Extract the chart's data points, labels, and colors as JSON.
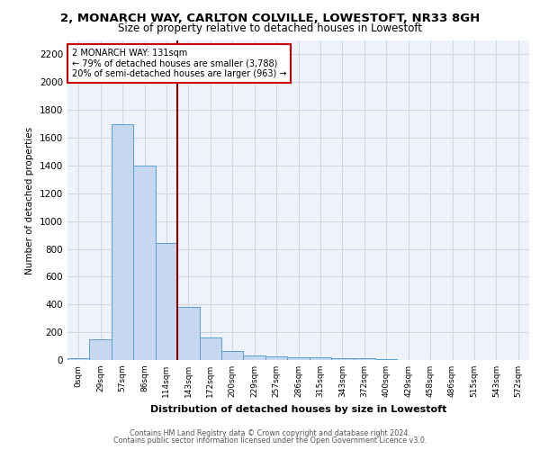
{
  "title1": "2, MONARCH WAY, CARLTON COLVILLE, LOWESTOFT, NR33 8GH",
  "title2": "Size of property relative to detached houses in Lowestoft",
  "xlabel": "Distribution of detached houses by size in Lowestoft",
  "ylabel": "Number of detached properties",
  "bar_labels": [
    "0sqm",
    "29sqm",
    "57sqm",
    "86sqm",
    "114sqm",
    "143sqm",
    "172sqm",
    "200sqm",
    "229sqm",
    "257sqm",
    "286sqm",
    "315sqm",
    "343sqm",
    "372sqm",
    "400sqm",
    "429sqm",
    "458sqm",
    "486sqm",
    "515sqm",
    "543sqm",
    "572sqm"
  ],
  "bar_values": [
    10,
    150,
    1700,
    1400,
    840,
    380,
    160,
    65,
    30,
    25,
    20,
    20,
    10,
    10,
    5,
    0,
    0,
    0,
    0,
    0,
    0
  ],
  "bar_color": "#c5d8f0",
  "bar_edge_color": "#5a9fd4",
  "grid_color": "#d0d8e8",
  "background_color": "#eef2fa",
  "vline_color": "#8b0000",
  "annotation_text": "2 MONARCH WAY: 131sqm\n← 79% of detached houses are smaller (3,788)\n20% of semi-detached houses are larger (963) →",
  "ylim": [
    0,
    2300
  ],
  "yticks": [
    0,
    200,
    400,
    600,
    800,
    1000,
    1200,
    1400,
    1600,
    1800,
    2000,
    2200
  ],
  "footer1": "Contains HM Land Registry data © Crown copyright and database right 2024.",
  "footer2": "Contains public sector information licensed under the Open Government Licence v3.0."
}
